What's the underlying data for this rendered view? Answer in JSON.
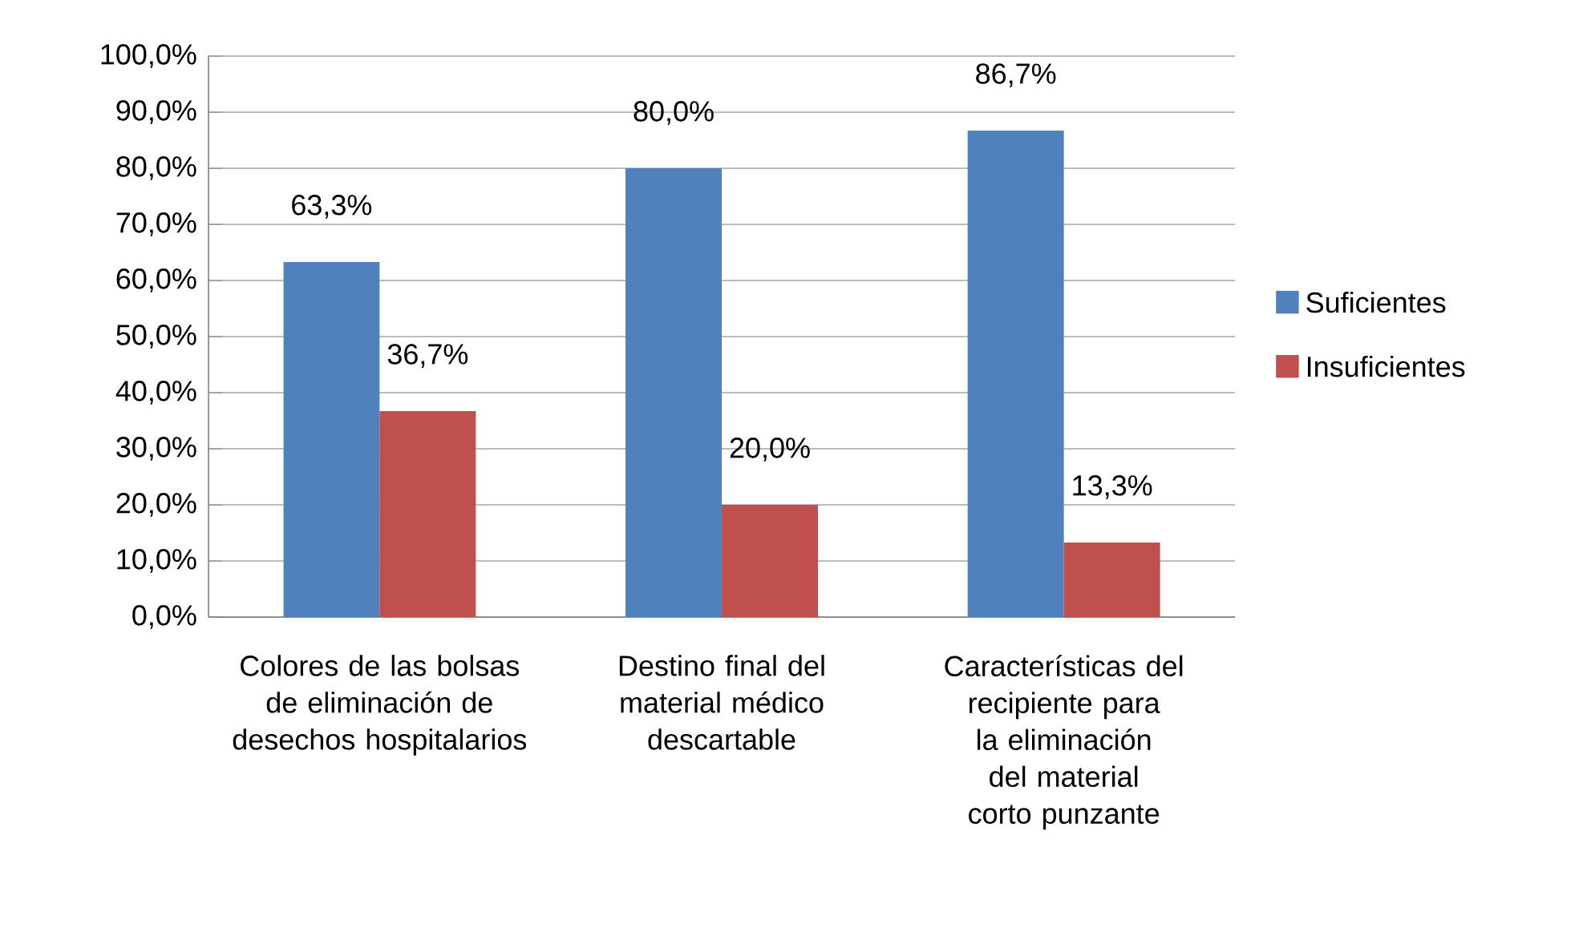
{
  "chart_data": {
    "type": "bar",
    "categories": [
      "Colores de las bolsas de eliminación de desechos hospitalarios",
      "Destino final del material médico descartable",
      "Características del recipiente para la eliminación del material corto punzante"
    ],
    "series": [
      {
        "name": "Suficientes",
        "color": "#4f81bd",
        "values": [
          63.3,
          80.0,
          86.7
        ],
        "value_labels": [
          "63,3%",
          "80,0%",
          "86,7%"
        ]
      },
      {
        "name": "Insuficientes",
        "color": "#c0504d",
        "values": [
          36.7,
          20.0,
          13.3
        ],
        "value_labels": [
          "36,7%",
          "20,0%",
          "13,3%"
        ]
      }
    ],
    "ylim": [
      0,
      100
    ],
    "yticks": [
      {
        "value": 0,
        "label": "0,0%"
      },
      {
        "value": 10,
        "label": "10,0%"
      },
      {
        "value": 20,
        "label": "20,0%"
      },
      {
        "value": 30,
        "label": "30,0%"
      },
      {
        "value": 40,
        "label": "40,0%"
      },
      {
        "value": 50,
        "label": "50,0%"
      },
      {
        "value": 60,
        "label": "60,0%"
      },
      {
        "value": 70,
        "label": "70,0%"
      },
      {
        "value": 80,
        "label": "80,0%"
      },
      {
        "value": 90,
        "label": "90,0%"
      },
      {
        "value": 100,
        "label": "100,0%"
      }
    ],
    "grid": "y",
    "legend": "right"
  }
}
